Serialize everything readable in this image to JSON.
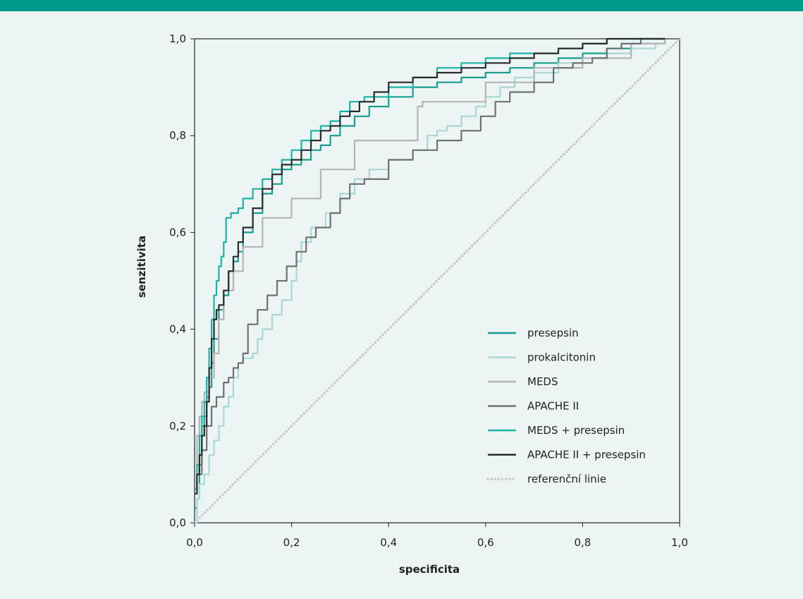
{
  "chart_data": {
    "type": "line",
    "title": "",
    "xlabel": "specificita",
    "ylabel": "senzitivita",
    "xlim": [
      0,
      1
    ],
    "ylim": [
      0,
      1
    ],
    "x_ticks": [
      "0,0",
      "0,2",
      "0,4",
      "0,6",
      "0,8",
      "1,0"
    ],
    "y_ticks": [
      "0,0",
      "0,2",
      "0,4",
      "0,6",
      "0,8",
      "1,0"
    ],
    "grid": false,
    "legend_position": "bottom-right",
    "series": [
      {
        "name": "presepsin",
        "color": "#1a9c8f",
        "style": "solid",
        "points": [
          [
            0,
            0.03
          ],
          [
            0.005,
            0.05
          ],
          [
            0.01,
            0.12
          ],
          [
            0.015,
            0.2
          ],
          [
            0.02,
            0.22
          ],
          [
            0.025,
            0.26
          ],
          [
            0.03,
            0.28
          ],
          [
            0.035,
            0.33
          ],
          [
            0.04,
            0.38
          ],
          [
            0.05,
            0.44
          ],
          [
            0.06,
            0.47
          ],
          [
            0.07,
            0.52
          ],
          [
            0.08,
            0.54
          ],
          [
            0.09,
            0.56
          ],
          [
            0.1,
            0.6
          ],
          [
            0.12,
            0.64
          ],
          [
            0.14,
            0.68
          ],
          [
            0.16,
            0.7
          ],
          [
            0.18,
            0.73
          ],
          [
            0.2,
            0.74
          ],
          [
            0.22,
            0.75
          ],
          [
            0.24,
            0.77
          ],
          [
            0.26,
            0.78
          ],
          [
            0.28,
            0.8
          ],
          [
            0.3,
            0.82
          ],
          [
            0.33,
            0.84
          ],
          [
            0.36,
            0.86
          ],
          [
            0.4,
            0.88
          ],
          [
            0.45,
            0.9
          ],
          [
            0.5,
            0.91
          ],
          [
            0.55,
            0.92
          ],
          [
            0.6,
            0.93
          ],
          [
            0.65,
            0.94
          ],
          [
            0.7,
            0.95
          ],
          [
            0.75,
            0.96
          ],
          [
            0.8,
            0.97
          ],
          [
            0.85,
            0.98
          ],
          [
            0.9,
            0.99
          ],
          [
            0.97,
            1.0
          ]
        ]
      },
      {
        "name": "prokalcitonin",
        "color": "#a9d8d1",
        "style": "solid",
        "points": [
          [
            0,
            0.0
          ],
          [
            0.005,
            0.05
          ],
          [
            0.01,
            0.08
          ],
          [
            0.02,
            0.1
          ],
          [
            0.03,
            0.14
          ],
          [
            0.04,
            0.17
          ],
          [
            0.05,
            0.2
          ],
          [
            0.06,
            0.24
          ],
          [
            0.07,
            0.26
          ],
          [
            0.08,
            0.3
          ],
          [
            0.09,
            0.33
          ],
          [
            0.1,
            0.34
          ],
          [
            0.12,
            0.35
          ],
          [
            0.13,
            0.38
          ],
          [
            0.14,
            0.4
          ],
          [
            0.16,
            0.43
          ],
          [
            0.18,
            0.46
          ],
          [
            0.2,
            0.5
          ],
          [
            0.21,
            0.54
          ],
          [
            0.22,
            0.58
          ],
          [
            0.24,
            0.61
          ],
          [
            0.27,
            0.64
          ],
          [
            0.3,
            0.68
          ],
          [
            0.33,
            0.71
          ],
          [
            0.36,
            0.73
          ],
          [
            0.4,
            0.75
          ],
          [
            0.45,
            0.77
          ],
          [
            0.48,
            0.8
          ],
          [
            0.5,
            0.81
          ],
          [
            0.52,
            0.82
          ],
          [
            0.55,
            0.84
          ],
          [
            0.58,
            0.86
          ],
          [
            0.6,
            0.88
          ],
          [
            0.63,
            0.9
          ],
          [
            0.66,
            0.92
          ],
          [
            0.7,
            0.93
          ],
          [
            0.75,
            0.95
          ],
          [
            0.8,
            0.96
          ],
          [
            0.85,
            0.97
          ],
          [
            0.9,
            0.98
          ],
          [
            0.95,
            0.99
          ],
          [
            0.97,
            1.0
          ]
        ]
      },
      {
        "name": "MEDS",
        "color": "#b4b4b4",
        "style": "solid",
        "points": [
          [
            0,
            0.08
          ],
          [
            0.005,
            0.18
          ],
          [
            0.01,
            0.22
          ],
          [
            0.015,
            0.25
          ],
          [
            0.02,
            0.27
          ],
          [
            0.03,
            0.3
          ],
          [
            0.04,
            0.35
          ],
          [
            0.05,
            0.42
          ],
          [
            0.06,
            0.48
          ],
          [
            0.08,
            0.52
          ],
          [
            0.1,
            0.57
          ],
          [
            0.14,
            0.63
          ],
          [
            0.2,
            0.67
          ],
          [
            0.26,
            0.73
          ],
          [
            0.33,
            0.79
          ],
          [
            0.46,
            0.86
          ],
          [
            0.47,
            0.87
          ],
          [
            0.6,
            0.91
          ],
          [
            0.7,
            0.94
          ],
          [
            0.8,
            0.96
          ],
          [
            0.9,
            0.99
          ],
          [
            0.97,
            1.0
          ]
        ]
      },
      {
        "name": "APACHE II",
        "color": "#707070",
        "style": "solid",
        "points": [
          [
            0,
            0.07
          ],
          [
            0.005,
            0.1
          ],
          [
            0.015,
            0.15
          ],
          [
            0.025,
            0.2
          ],
          [
            0.035,
            0.24
          ],
          [
            0.045,
            0.26
          ],
          [
            0.06,
            0.29
          ],
          [
            0.07,
            0.3
          ],
          [
            0.08,
            0.32
          ],
          [
            0.09,
            0.33
          ],
          [
            0.1,
            0.35
          ],
          [
            0.11,
            0.41
          ],
          [
            0.13,
            0.44
          ],
          [
            0.15,
            0.47
          ],
          [
            0.17,
            0.5
          ],
          [
            0.19,
            0.53
          ],
          [
            0.21,
            0.56
          ],
          [
            0.23,
            0.59
          ],
          [
            0.25,
            0.61
          ],
          [
            0.28,
            0.64
          ],
          [
            0.3,
            0.67
          ],
          [
            0.32,
            0.7
          ],
          [
            0.35,
            0.71
          ],
          [
            0.4,
            0.75
          ],
          [
            0.45,
            0.77
          ],
          [
            0.5,
            0.79
          ],
          [
            0.55,
            0.81
          ],
          [
            0.59,
            0.84
          ],
          [
            0.62,
            0.87
          ],
          [
            0.65,
            0.89
          ],
          [
            0.7,
            0.91
          ],
          [
            0.74,
            0.94
          ],
          [
            0.78,
            0.95
          ],
          [
            0.82,
            0.96
          ],
          [
            0.85,
            0.98
          ],
          [
            0.88,
            0.99
          ],
          [
            0.92,
            1.0
          ],
          [
            0.97,
            1.0
          ]
        ]
      },
      {
        "name": "MEDS + presepsin",
        "color": "#1ab3a6",
        "style": "solid",
        "points": [
          [
            0,
            0.07
          ],
          [
            0.005,
            0.12
          ],
          [
            0.01,
            0.18
          ],
          [
            0.015,
            0.22
          ],
          [
            0.02,
            0.25
          ],
          [
            0.025,
            0.3
          ],
          [
            0.03,
            0.36
          ],
          [
            0.035,
            0.42
          ],
          [
            0.04,
            0.47
          ],
          [
            0.045,
            0.5
          ],
          [
            0.05,
            0.53
          ],
          [
            0.055,
            0.55
          ],
          [
            0.06,
            0.58
          ],
          [
            0.065,
            0.63
          ],
          [
            0.075,
            0.64
          ],
          [
            0.09,
            0.65
          ],
          [
            0.1,
            0.67
          ],
          [
            0.12,
            0.69
          ],
          [
            0.14,
            0.71
          ],
          [
            0.16,
            0.73
          ],
          [
            0.18,
            0.75
          ],
          [
            0.2,
            0.77
          ],
          [
            0.22,
            0.79
          ],
          [
            0.24,
            0.81
          ],
          [
            0.26,
            0.82
          ],
          [
            0.28,
            0.83
          ],
          [
            0.3,
            0.85
          ],
          [
            0.32,
            0.87
          ],
          [
            0.35,
            0.88
          ],
          [
            0.4,
            0.9
          ],
          [
            0.45,
            0.92
          ],
          [
            0.5,
            0.94
          ],
          [
            0.55,
            0.95
          ],
          [
            0.6,
            0.96
          ],
          [
            0.65,
            0.97
          ],
          [
            0.7,
            0.97
          ],
          [
            0.75,
            0.98
          ],
          [
            0.8,
            0.99
          ],
          [
            0.85,
            1.0
          ],
          [
            0.97,
            1.0
          ]
        ]
      },
      {
        "name": "APACHE II + presepsin",
        "color": "#2b2b2b",
        "style": "solid",
        "points": [
          [
            0,
            0.06
          ],
          [
            0.005,
            0.1
          ],
          [
            0.01,
            0.14
          ],
          [
            0.015,
            0.18
          ],
          [
            0.02,
            0.2
          ],
          [
            0.025,
            0.25
          ],
          [
            0.03,
            0.32
          ],
          [
            0.035,
            0.38
          ],
          [
            0.04,
            0.42
          ],
          [
            0.045,
            0.44
          ],
          [
            0.05,
            0.45
          ],
          [
            0.06,
            0.48
          ],
          [
            0.07,
            0.52
          ],
          [
            0.08,
            0.55
          ],
          [
            0.09,
            0.58
          ],
          [
            0.1,
            0.61
          ],
          [
            0.12,
            0.65
          ],
          [
            0.14,
            0.69
          ],
          [
            0.16,
            0.72
          ],
          [
            0.18,
            0.74
          ],
          [
            0.2,
            0.75
          ],
          [
            0.22,
            0.77
          ],
          [
            0.24,
            0.79
          ],
          [
            0.26,
            0.81
          ],
          [
            0.28,
            0.82
          ],
          [
            0.3,
            0.84
          ],
          [
            0.32,
            0.85
          ],
          [
            0.34,
            0.87
          ],
          [
            0.37,
            0.89
          ],
          [
            0.4,
            0.91
          ],
          [
            0.45,
            0.92
          ],
          [
            0.5,
            0.93
          ],
          [
            0.55,
            0.94
          ],
          [
            0.6,
            0.95
          ],
          [
            0.65,
            0.96
          ],
          [
            0.7,
            0.97
          ],
          [
            0.75,
            0.98
          ],
          [
            0.8,
            0.99
          ],
          [
            0.85,
            1.0
          ],
          [
            0.97,
            1.0
          ]
        ]
      },
      {
        "name": "referenční linie",
        "color": "#c8c8c8",
        "style": "dotted",
        "points": [
          [
            0,
            0
          ],
          [
            1,
            1
          ]
        ]
      }
    ]
  }
}
